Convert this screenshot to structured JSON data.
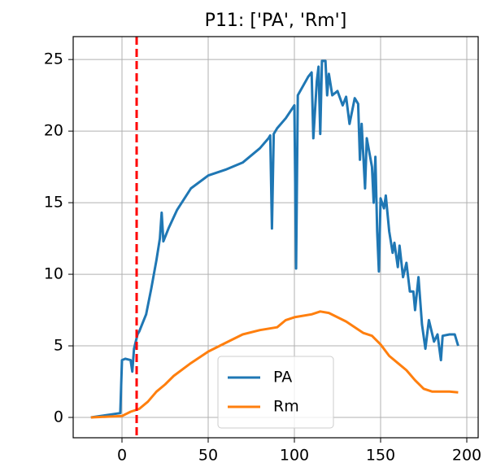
{
  "chart_data": {
    "type": "line",
    "title": "P11: ['PA', 'Rm']",
    "series": [
      {
        "name": "PA",
        "color": "#1f77b4",
        "x": [
          -18,
          -1,
          0,
          2,
          5,
          6,
          7,
          9,
          10,
          12,
          14,
          17,
          20,
          22,
          23,
          24,
          27,
          32,
          40,
          50,
          60,
          70,
          80,
          85,
          86,
          87,
          88,
          90,
          95,
          100,
          101,
          102,
          108,
          110,
          111,
          113,
          114,
          115,
          116,
          118,
          119,
          120,
          122,
          125,
          128,
          130,
          132,
          135,
          137,
          138,
          139,
          141,
          142,
          145,
          146,
          147,
          148,
          149,
          150,
          152,
          153,
          155,
          157,
          158,
          160,
          161,
          163,
          165,
          167,
          169,
          170,
          172,
          174,
          176,
          178,
          181,
          183,
          185,
          186,
          190,
          193,
          195
        ],
        "values": [
          0,
          0.3,
          4.0,
          4.1,
          4.0,
          3.2,
          4.8,
          5.8,
          6.0,
          6.6,
          7.2,
          9,
          11,
          12.5,
          14.3,
          12.3,
          13.2,
          14.5,
          16,
          16.9,
          17.3,
          17.8,
          18.8,
          19.5,
          19.7,
          13.2,
          19.8,
          20.2,
          20.9,
          21.8,
          10.4,
          22.5,
          23.8,
          24.1,
          19.5,
          23.5,
          24.5,
          19.8,
          24.9,
          24.9,
          22.5,
          24.0,
          22.5,
          22.8,
          21.8,
          22.4,
          20.5,
          22.3,
          21.9,
          18.0,
          20.5,
          16.0,
          19.5,
          17.5,
          15.0,
          18.2,
          13.0,
          10.2,
          15.3,
          14.6,
          15.5,
          13.0,
          11.5,
          12.2,
          10.5,
          12.0,
          9.8,
          10.8,
          8.8,
          8.8,
          7.5,
          9.8,
          6.5,
          4.8,
          6.8,
          5.3,
          5.8,
          4.0,
          5.7,
          5.8,
          5.8,
          5.0
        ]
      },
      {
        "name": "Rm",
        "color": "#ff7f0e",
        "x": [
          -18,
          0,
          5,
          10,
          15,
          20,
          25,
          30,
          40,
          50,
          60,
          70,
          80,
          90,
          95,
          100,
          110,
          115,
          120,
          130,
          140,
          145,
          150,
          155,
          160,
          165,
          170,
          175,
          180,
          190,
          195
        ],
        "values": [
          0,
          0.1,
          0.4,
          0.6,
          1.1,
          1.8,
          2.3,
          2.9,
          3.8,
          4.6,
          5.2,
          5.8,
          6.1,
          6.3,
          6.8,
          7.0,
          7.2,
          7.4,
          7.3,
          6.7,
          5.9,
          5.7,
          5.1,
          4.3,
          3.8,
          3.3,
          2.6,
          2.0,
          1.8,
          1.8,
          1.75
        ]
      }
    ],
    "vline": {
      "x": 8.5,
      "color": "red"
    },
    "xlim": [
      -28.3,
      206.6
    ],
    "xticks": [
      0,
      50,
      100,
      150,
      200
    ],
    "ylim": [
      -1.42,
      26.6
    ],
    "yticks": [
      0,
      5,
      10,
      15,
      20,
      25
    ],
    "grid": true,
    "legend": "lower center"
  }
}
